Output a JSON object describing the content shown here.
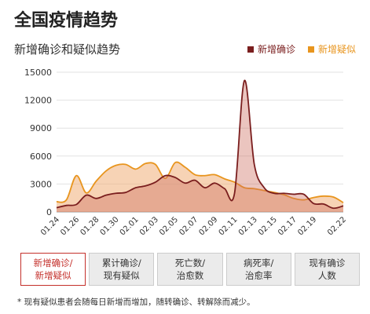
{
  "page": {
    "title": "全国疫情趋势"
  },
  "chart_data": {
    "type": "area",
    "title": "新增确诊和疑似趋势",
    "x": [
      "01.24",
      "01.25",
      "01.26",
      "01.27",
      "01.28",
      "01.29",
      "01.30",
      "01.31",
      "02.01",
      "02.02",
      "02.03",
      "02.04",
      "02.05",
      "02.06",
      "02.07",
      "02.08",
      "02.09",
      "02.10",
      "02.11",
      "02.12",
      "02.13",
      "02.14",
      "02.15",
      "02.16",
      "02.17",
      "02.18",
      "02.19",
      "02.20",
      "02.21",
      "02.22"
    ],
    "x_tick_labels": [
      "01.24",
      "01.26",
      "01.28",
      "01.30",
      "02.01",
      "02.03",
      "02.05",
      "02.07",
      "02.09",
      "02.11",
      "02.13",
      "02.15",
      "02.17",
      "02.19",
      "02.22"
    ],
    "y_ticks": [
      "0",
      "3000",
      "6000",
      "9000",
      "12000",
      "15000"
    ],
    "ylim": [
      0,
      15000
    ],
    "series": [
      {
        "name": "新增确诊",
        "color": "#7a1e1e",
        "values": [
          450,
          700,
          800,
          1800,
          1450,
          1800,
          2000,
          2100,
          2600,
          2800,
          3200,
          3900,
          3700,
          3100,
          3400,
          2600,
          3100,
          2500,
          2000,
          14100,
          5100,
          2600,
          2000,
          2000,
          1900,
          1900,
          900,
          850,
          400,
          650
        ]
      },
      {
        "name": "新增疑似",
        "color": "#e8951e",
        "values": [
          1100,
          1300,
          3900,
          2050,
          3300,
          4400,
          5000,
          5100,
          4600,
          5200,
          5100,
          3600,
          5300,
          4800,
          4000,
          3900,
          4000,
          3550,
          3200,
          2600,
          2500,
          2300,
          2100,
          1850,
          1450,
          1300,
          1550,
          1700,
          1600,
          1000
        ]
      }
    ],
    "grid": true
  },
  "tabs": [
    {
      "label": "新增确诊/\n新增疑似",
      "active": true
    },
    {
      "label": "累计确诊/\n现有疑似",
      "active": false
    },
    {
      "label": "死亡数/\n治愈数",
      "active": false
    },
    {
      "label": "病死率/\n治愈率",
      "active": false
    },
    {
      "label": "现有确诊\n人数",
      "active": false
    }
  ],
  "footnote": "* 现有疑似患者会随每日新增而增加，随转确诊、转解除而减少。"
}
